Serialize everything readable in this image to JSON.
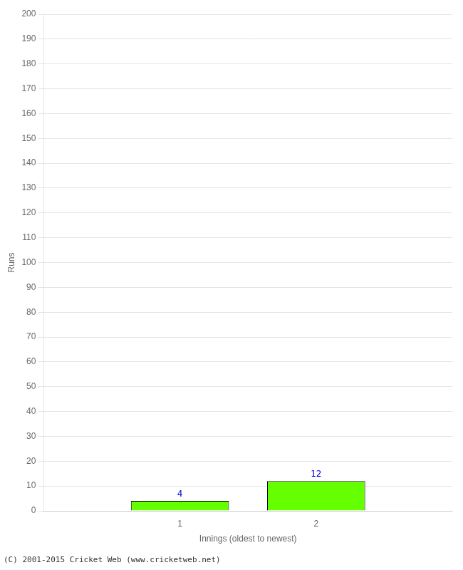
{
  "chart_data": {
    "type": "bar",
    "x": [
      1,
      2
    ],
    "values": [
      4,
      12
    ],
    "color": "#66ff00",
    "xlabel": "Innings (oldest to newest)",
    "ylabel": "Runs",
    "xlim": [
      0,
      3
    ],
    "xticks": [
      1,
      2
    ],
    "ylim": [
      0,
      200
    ],
    "yticks": [
      0,
      10,
      20,
      30,
      40,
      50,
      60,
      70,
      80,
      90,
      100,
      110,
      120,
      130,
      140,
      150,
      160,
      170,
      180,
      190,
      200
    ],
    "grid": "y",
    "data_labels": true,
    "annotations": [
      "(C) 2001-2015 Cricket Web (www.cricketweb.net)"
    ]
  }
}
